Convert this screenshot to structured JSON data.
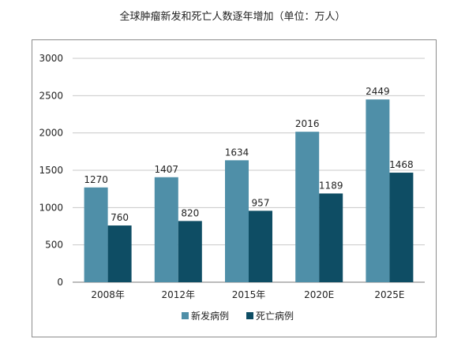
{
  "chart_data": {
    "type": "bar",
    "title": "全球肿瘤新发和死亡人数逐年增加（单位：万人）",
    "categories": [
      "2008年",
      "2012年",
      "2015年",
      "2020E",
      "2025E"
    ],
    "series": [
      {
        "name": "新发病例",
        "values": [
          1270,
          1407,
          1634,
          2016,
          2449
        ],
        "color": "#4f8fa8"
      },
      {
        "name": "死亡病例",
        "values": [
          760,
          820,
          957,
          1189,
          1468
        ],
        "color": "#0e4d64"
      }
    ],
    "yticks": [
      0,
      500,
      1000,
      1500,
      2000,
      2500,
      3000
    ],
    "ylim": [
      0,
      3000
    ],
    "grid": true,
    "legend_position": "bottom"
  }
}
